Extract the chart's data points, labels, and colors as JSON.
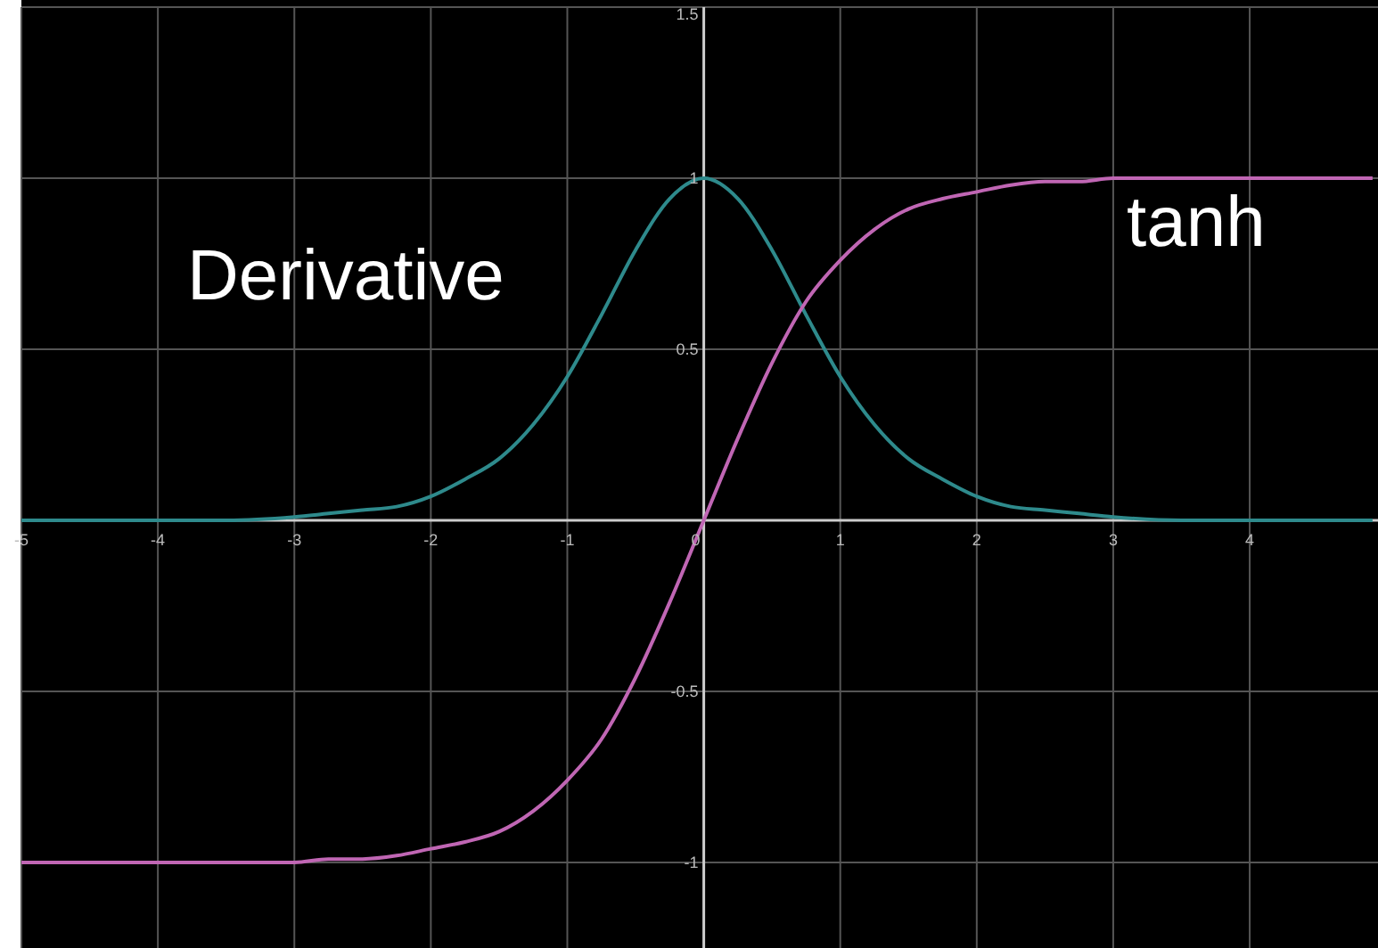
{
  "chart_data": {
    "type": "line",
    "x": [
      -5,
      -4.5,
      -4,
      -3.5,
      -3,
      -2.75,
      -2.5,
      -2.25,
      -2,
      -1.75,
      -1.5,
      -1.25,
      -1,
      -0.75,
      -0.5,
      -0.25,
      0,
      0.25,
      0.5,
      0.75,
      1,
      1.25,
      1.5,
      1.75,
      2,
      2.25,
      2.5,
      2.75,
      3,
      3.5,
      4,
      4.5,
      4.9
    ],
    "series": [
      {
        "name": "Derivative",
        "color": "#2e8a8c",
        "values": [
          0,
          0,
          0,
          0,
          0.01,
          0.02,
          0.03,
          0.04,
          0.07,
          0.12,
          0.18,
          0.28,
          0.42,
          0.6,
          0.79,
          0.94,
          1,
          0.94,
          0.79,
          0.6,
          0.42,
          0.28,
          0.18,
          0.12,
          0.07,
          0.04,
          0.03,
          0.02,
          0.01,
          0,
          0,
          0,
          0
        ]
      },
      {
        "name": "tanh",
        "color": "#c066b4",
        "values": [
          -1,
          -1,
          -1,
          -1,
          -1,
          -0.99,
          -0.99,
          -0.98,
          -0.96,
          -0.94,
          -0.91,
          -0.85,
          -0.76,
          -0.64,
          -0.46,
          -0.24,
          0,
          0.24,
          0.46,
          0.64,
          0.76,
          0.85,
          0.91,
          0.94,
          0.96,
          0.98,
          0.99,
          0.99,
          1,
          1,
          1,
          1,
          1
        ]
      }
    ],
    "xlim": [
      -5,
      4.94
    ],
    "ylim": [
      -1.25,
      1.5
    ],
    "xticks": [
      -5,
      -4,
      -3,
      -2,
      -1,
      0,
      1,
      2,
      3,
      4
    ],
    "yticks": [
      -1,
      -0.5,
      {
        "value": 0,
        "label": null
      },
      0.5,
      1,
      1.5
    ],
    "grid": true,
    "marker": "none",
    "line_style": "solid"
  }
}
